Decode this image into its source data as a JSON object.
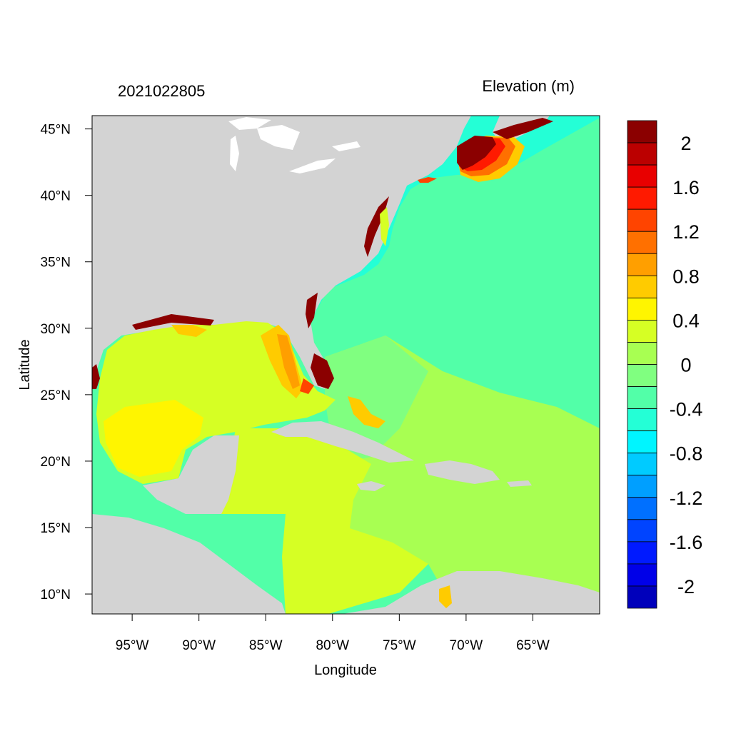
{
  "header": {
    "date_label": "2021022805",
    "units_label": "Elevation (m)"
  },
  "axes": {
    "x_label": "Longitude",
    "y_label": "Latitude",
    "x_range_deg": [
      -98,
      -60
    ],
    "y_range_deg": [
      8.5,
      46
    ],
    "x_ticks": [
      {
        "value": -95,
        "label": "95°W"
      },
      {
        "value": -90,
        "label": "90°W"
      },
      {
        "value": -85,
        "label": "85°W"
      },
      {
        "value": -80,
        "label": "80°W"
      },
      {
        "value": -75,
        "label": "75°W"
      },
      {
        "value": -70,
        "label": "70°W"
      },
      {
        "value": -65,
        "label": "65°W"
      }
    ],
    "y_ticks": [
      {
        "value": 45,
        "label": "45°N"
      },
      {
        "value": 40,
        "label": "40°N"
      },
      {
        "value": 35,
        "label": "35°N"
      },
      {
        "value": 30,
        "label": "30°N"
      },
      {
        "value": 25,
        "label": "25°N"
      },
      {
        "value": 20,
        "label": "20°N"
      },
      {
        "value": 15,
        "label": "15°N"
      },
      {
        "value": 10,
        "label": "10°N"
      }
    ]
  },
  "colorbar": {
    "bins_top_to_bottom": [
      "#8B0000",
      "#BB0000",
      "#E80000",
      "#FF1A00",
      "#FF4400",
      "#FF7000",
      "#FF9F00",
      "#FFCB00",
      "#FFF500",
      "#D6FF24",
      "#A8FF52",
      "#80FF80",
      "#52FFA8",
      "#24FFD6",
      "#00F5FF",
      "#00CBFF",
      "#009FFF",
      "#0070FF",
      "#0044FF",
      "#001AFF",
      "#0000E8",
      "#0000BB"
    ],
    "labels": [
      "2",
      "1.6",
      "1.2",
      "0.8",
      "0.4",
      "0",
      "-0.4",
      "-0.8",
      "-1.2",
      "-1.6",
      "-2"
    ]
  },
  "map": {
    "land_color": "#D3D3D3",
    "lake_color": "#FFFFFF",
    "field_colors": {
      "ocean_open": "#52FFA8",
      "shelf": "#24FFD6",
      "caribbean_east": "#A8FF52",
      "caribbean_mid": "#80FF80",
      "caribbean_west": "#D6FF24",
      "gulf": "#D6FF24",
      "gulf_core": "#FFF500",
      "surge_low": "#FFCB00",
      "surge_mid": "#FF9F00",
      "surge_high": "#FF4400",
      "surge_peak": "#8B0000"
    }
  }
}
